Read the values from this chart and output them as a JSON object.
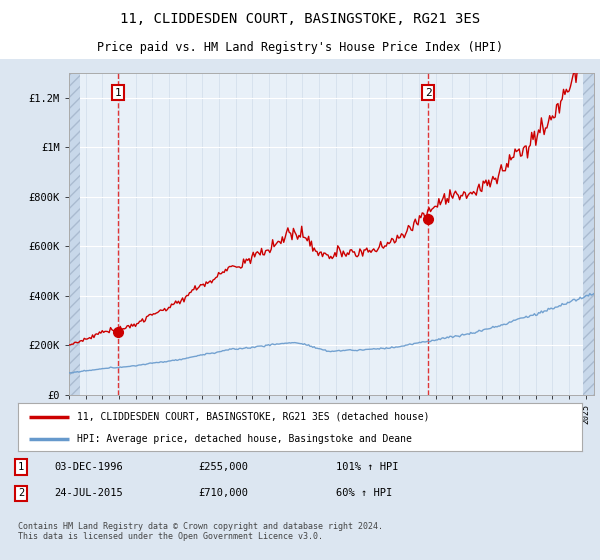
{
  "title": "11, CLIDDESDEN COURT, BASINGSTOKE, RG21 3ES",
  "subtitle": "Price paid vs. HM Land Registry's House Price Index (HPI)",
  "title_fontsize": 10,
  "subtitle_fontsize": 8.5,
  "background_color": "#dce6f1",
  "plot_bg_color": "#e8f0f8",
  "red_color": "#cc0000",
  "blue_color": "#6699cc",
  "ylim": [
    0,
    1300000
  ],
  "yticks": [
    0,
    200000,
    400000,
    600000,
    800000,
    1000000,
    1200000
  ],
  "ytick_labels": [
    "£0",
    "£200K",
    "£400K",
    "£600K",
    "£800K",
    "£1M",
    "£1.2M"
  ],
  "purchase1_date": 1996.92,
  "purchase1_price": 255000,
  "purchase1_label": "1",
  "purchase2_date": 2015.56,
  "purchase2_price": 710000,
  "purchase2_label": "2",
  "legend_line1": "11, CLIDDESDEN COURT, BASINGSTOKE, RG21 3ES (detached house)",
  "legend_line2": "HPI: Average price, detached house, Basingstoke and Deane",
  "table_row1": [
    "1",
    "03-DEC-1996",
    "£255,000",
    "101% ↑ HPI"
  ],
  "table_row2": [
    "2",
    "24-JUL-2015",
    "£710,000",
    "60% ↑ HPI"
  ],
  "footer": "Contains HM Land Registry data © Crown copyright and database right 2024.\nThis data is licensed under the Open Government Licence v3.0.",
  "xmin": 1994.0,
  "xmax": 2025.5
}
